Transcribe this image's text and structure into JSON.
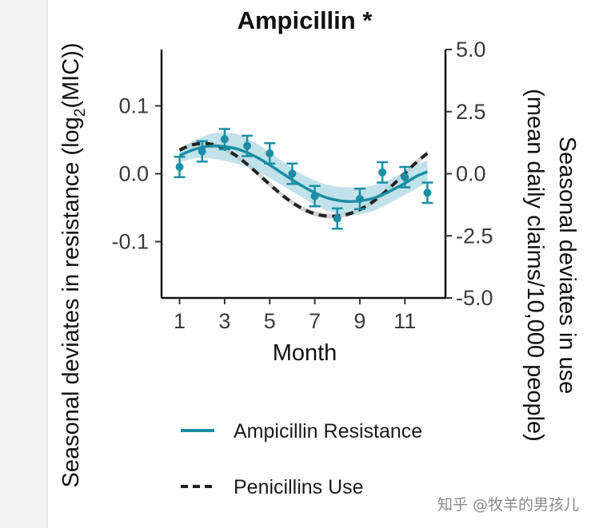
{
  "chart_data": {
    "type": "line",
    "title": "Ampicillin *",
    "xlabel": "Month",
    "ylabel_left": "Seasonal deviates in resistance (log₂(MIC))",
    "ylabel_left_parts": [
      "Seasonal deviates in resistance (log",
      "2",
      "(MIC))"
    ],
    "ylabel_right_line1": "Seasonal deviates in use",
    "ylabel_right_line2": "(mean daily claims/10,000 people)",
    "x_ticks": [
      1,
      3,
      5,
      7,
      9,
      11
    ],
    "x_tick_labels": [
      "1",
      "3",
      "5",
      "7",
      "9",
      "11"
    ],
    "xlim": [
      0.2,
      12.8
    ],
    "y_left_ticks": [
      0.1,
      0.0,
      -0.1
    ],
    "y_left_tick_labels": [
      "0.1",
      "0.0",
      "-0.1"
    ],
    "ylim_left": [
      -0.183,
      0.183
    ],
    "y_right_ticks": [
      5.0,
      2.5,
      0.0,
      -2.5,
      -5.0
    ],
    "y_right_tick_labels": [
      "5.0",
      "2.5",
      "0.0",
      "-2.5",
      "-5.0"
    ],
    "ylim_right": [
      -5.0,
      5.0
    ],
    "series": [
      {
        "name": "Ampicillin Resistance",
        "kind": "observed_points_with_error_bars",
        "axis": "left",
        "color": "#1b8ea3",
        "x": [
          1,
          2,
          3,
          4,
          5,
          6,
          7,
          8,
          9,
          10,
          11,
          12
        ],
        "y": [
          0.01,
          0.033,
          0.051,
          0.041,
          0.03,
          0.0,
          -0.033,
          -0.066,
          -0.037,
          0.002,
          -0.005,
          -0.028
        ],
        "err": [
          0.015,
          0.015,
          0.015,
          0.015,
          0.015,
          0.015,
          0.015,
          0.015,
          0.015,
          0.015,
          0.015,
          0.015
        ]
      },
      {
        "name": "Ampicillin Resistance",
        "kind": "fitted_curve",
        "axis": "left",
        "color": "#1b8ea3",
        "x": [
          1,
          1.5,
          2,
          2.5,
          3,
          3.5,
          4,
          4.5,
          5,
          5.5,
          6,
          6.5,
          7,
          7.5,
          8,
          8.5,
          9,
          9.5,
          10,
          10.5,
          11,
          11.5,
          12
        ],
        "y": [
          0.027,
          0.034,
          0.039,
          0.041,
          0.04,
          0.037,
          0.031,
          0.023,
          0.013,
          0.002,
          -0.009,
          -0.019,
          -0.028,
          -0.035,
          -0.039,
          -0.041,
          -0.04,
          -0.037,
          -0.031,
          -0.023,
          -0.014,
          -0.004,
          0.003
        ],
        "ci_lower": [
          0.017,
          0.022,
          0.024,
          0.022,
          0.019,
          0.015,
          0.01,
          0.003,
          -0.006,
          -0.016,
          -0.026,
          -0.036,
          -0.046,
          -0.054,
          -0.059,
          -0.062,
          -0.06,
          -0.056,
          -0.049,
          -0.04,
          -0.031,
          -0.022,
          -0.013
        ],
        "ci_upper": [
          0.037,
          0.046,
          0.054,
          0.06,
          0.061,
          0.059,
          0.052,
          0.043,
          0.032,
          0.02,
          0.008,
          -0.002,
          -0.01,
          -0.016,
          -0.019,
          -0.02,
          -0.02,
          -0.018,
          -0.013,
          -0.006,
          0.003,
          0.014,
          0.019
        ]
      },
      {
        "name": "Penicillins Use",
        "kind": "fitted_curve",
        "axis": "right",
        "color": "#222222",
        "style": "dashed",
        "x": [
          1,
          1.5,
          2,
          2.5,
          3,
          3.5,
          4,
          4.5,
          5,
          5.5,
          6,
          6.5,
          7,
          7.5,
          8,
          8.5,
          9,
          9.5,
          10,
          10.5,
          11,
          11.5,
          12
        ],
        "y": [
          0.95,
          1.15,
          1.22,
          1.17,
          1.0,
          0.73,
          0.38,
          -0.02,
          -0.43,
          -0.82,
          -1.16,
          -1.43,
          -1.61,
          -1.7,
          -1.7,
          -1.62,
          -1.44,
          -1.18,
          -0.83,
          -0.42,
          0.02,
          0.45,
          0.83
        ],
        "ci_lower": [
          0.85,
          1.05,
          1.12,
          1.07,
          0.9,
          0.63,
          0.28,
          -0.12,
          -0.53,
          -0.92,
          -1.26,
          -1.53,
          -1.71,
          -1.8,
          -1.8,
          -1.72,
          -1.54,
          -1.28,
          -0.93,
          -0.52,
          -0.08,
          0.35,
          0.73
        ],
        "ci_upper": [
          1.05,
          1.25,
          1.32,
          1.27,
          1.1,
          0.83,
          0.48,
          0.08,
          -0.33,
          -0.72,
          -1.06,
          -1.33,
          -1.51,
          -1.6,
          -1.6,
          -1.52,
          -1.34,
          -1.08,
          -0.73,
          -0.32,
          0.12,
          0.55,
          0.93
        ]
      }
    ],
    "legend": {
      "placement": "bottom",
      "entries": [
        {
          "label": "Ampicillin Resistance",
          "style": "solid",
          "color": "#1b8ea3"
        },
        {
          "label": "Penicillins Use",
          "style": "dashed",
          "color": "#222222"
        }
      ]
    },
    "colors": {
      "resistance": "#1b8ea3",
      "ribbon": "#9fd3df",
      "use": "#222222",
      "use_ribbon": "#c8c8c8"
    }
  },
  "watermark": "知乎 @牧羊的男孩儿"
}
